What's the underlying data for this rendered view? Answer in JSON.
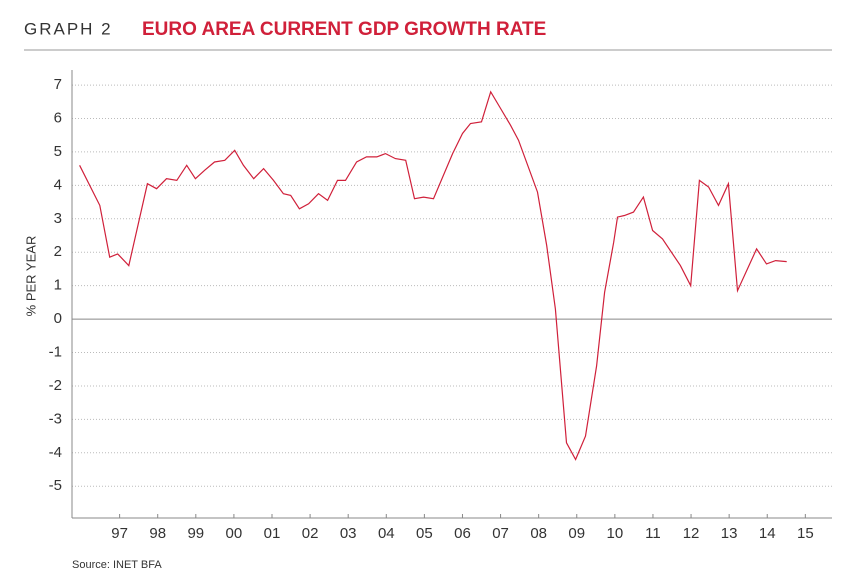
{
  "chart_data": {
    "type": "line",
    "label": "GRAPH 2",
    "title": "EURO AREA CURRENT GDP GROWTH RATE",
    "y_label": "% PER YEAR",
    "source": "Source: INET BFA",
    "x": [
      1995.95,
      1996.48,
      1996.74,
      1996.95,
      1997.24,
      1997.73,
      1997.97,
      1998.23,
      1998.5,
      1998.76,
      1998.99,
      1999.23,
      1999.49,
      1999.76,
      2000.02,
      2000.25,
      2000.52,
      2000.78,
      2001.04,
      2001.3,
      2001.49,
      2001.72,
      2001.96,
      2002.22,
      2002.46,
      2002.72,
      2002.93,
      2003.22,
      2003.48,
      2003.75,
      2003.98,
      2004.24,
      2004.51,
      2004.74,
      2004.98,
      2005.24,
      2005.74,
      2006.0,
      2006.21,
      2006.5,
      2006.74,
      2007.0,
      2007.26,
      2007.47,
      2007.97,
      2008.21,
      2008.44,
      2008.73,
      2008.97,
      2009.23,
      2009.52,
      2009.73,
      2009.97,
      2010.07,
      2010.25,
      2010.49,
      2010.75,
      2010.99,
      2011.25,
      2011.72,
      2011.99,
      2012.22,
      2012.46,
      2012.72,
      2012.98,
      2013.22,
      2013.72,
      2013.98,
      2014.22,
      2014.51
    ],
    "series": [
      {
        "name": "Euro area current GDP growth",
        "color": "#d0203a",
        "values": [
          4.6,
          3.4,
          1.85,
          1.95,
          1.6,
          4.05,
          3.9,
          4.2,
          4.15,
          4.6,
          4.2,
          4.45,
          4.7,
          4.75,
          5.05,
          4.6,
          4.2,
          4.5,
          4.15,
          3.75,
          3.7,
          3.3,
          3.45,
          3.75,
          3.55,
          4.15,
          4.15,
          4.7,
          4.85,
          4.85,
          4.95,
          4.8,
          4.75,
          3.6,
          3.65,
          3.6,
          4.95,
          5.55,
          5.85,
          5.9,
          6.8,
          6.3,
          5.8,
          5.35,
          3.8,
          2.2,
          0.3,
          -3.7,
          -4.2,
          -3.5,
          -1.4,
          0.8,
          2.3,
          3.05,
          3.1,
          3.2,
          3.65,
          2.65,
          2.4,
          1.6,
          1.0,
          4.15,
          3.95,
          3.4,
          4.05,
          0.85,
          2.1,
          1.65,
          1.75,
          1.72
        ]
      }
    ],
    "xlim": [
      1995.75,
      2015.7
    ],
    "xticks": [
      {
        "value": 1997,
        "label": "97"
      },
      {
        "value": 1998,
        "label": "98"
      },
      {
        "value": 1999,
        "label": "99"
      },
      {
        "value": 2000,
        "label": "00"
      },
      {
        "value": 2001,
        "label": "01"
      },
      {
        "value": 2002,
        "label": "02"
      },
      {
        "value": 2003,
        "label": "03"
      },
      {
        "value": 2004,
        "label": "04"
      },
      {
        "value": 2005,
        "label": "05"
      },
      {
        "value": 2006,
        "label": "06"
      },
      {
        "value": 2007,
        "label": "07"
      },
      {
        "value": 2008,
        "label": "08"
      },
      {
        "value": 2009,
        "label": "09"
      },
      {
        "value": 2010,
        "label": "10"
      },
      {
        "value": 2011,
        "label": "11"
      },
      {
        "value": 2012,
        "label": "12"
      },
      {
        "value": 2013,
        "label": "13"
      },
      {
        "value": 2014,
        "label": "14"
      },
      {
        "value": 2015,
        "label": "15"
      }
    ],
    "ylim": [
      -5.95,
      7.75
    ],
    "yticks": [
      -5,
      -4,
      -3,
      -2,
      -1,
      0,
      1,
      2,
      3,
      4,
      5,
      6,
      7
    ],
    "grid": true
  }
}
